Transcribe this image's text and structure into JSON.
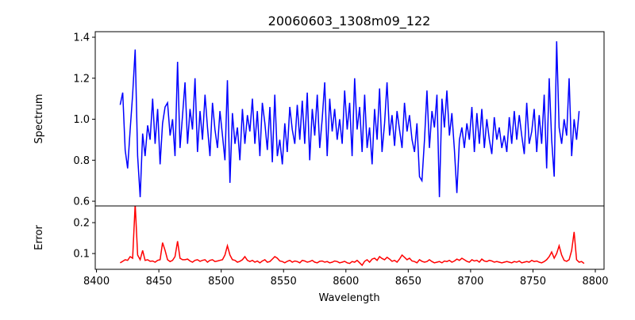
{
  "chart_data": [
    {
      "type": "line",
      "title": "20060603_1308m09_122",
      "ylabel": "Spectrum",
      "xlabel": "",
      "xlim": [
        8399,
        8807
      ],
      "ylim": [
        0.577,
        1.427
      ],
      "yticks": [
        0.6,
        0.8,
        1.0,
        1.2,
        1.4
      ],
      "ytick_labels": [
        "0.6",
        "0.8",
        "1.0",
        "1.2",
        "1.4"
      ],
      "color": "#0000ff",
      "x_start": 8419,
      "x_step": 2,
      "values": [
        1.07,
        1.13,
        0.85,
        0.76,
        0.95,
        1.12,
        1.34,
        0.82,
        0.62,
        0.93,
        0.82,
        0.97,
        0.9,
        1.1,
        0.88,
        1.05,
        0.78,
        0.98,
        1.06,
        1.08,
        0.92,
        1.0,
        0.82,
        1.28,
        0.86,
        1.02,
        1.18,
        0.88,
        1.05,
        0.95,
        1.2,
        0.84,
        1.04,
        0.9,
        1.12,
        0.96,
        0.82,
        1.08,
        0.95,
        0.86,
        1.04,
        0.92,
        0.8,
        1.19,
        0.69,
        1.03,
        0.88,
        0.96,
        0.8,
        1.05,
        0.88,
        1.02,
        0.94,
        1.1,
        0.88,
        1.04,
        0.82,
        1.08,
        0.98,
        0.85,
        1.06,
        0.79,
        1.12,
        0.82,
        0.9,
        0.78,
        0.98,
        0.84,
        1.06,
        0.95,
        0.88,
        1.07,
        0.9,
        1.09,
        0.88,
        1.13,
        0.8,
        1.05,
        0.92,
        1.12,
        0.86,
        1.0,
        1.18,
        0.82,
        1.1,
        0.94,
        1.05,
        0.9,
        1.0,
        0.88,
        1.14,
        0.95,
        1.08,
        0.82,
        1.2,
        0.95,
        1.06,
        0.84,
        1.12,
        0.86,
        0.96,
        0.78,
        1.05,
        0.9,
        1.15,
        0.84,
        0.98,
        1.18,
        0.92,
        1.02,
        0.87,
        1.04,
        0.95,
        0.86,
        1.08,
        0.94,
        1.02,
        0.9,
        0.84,
        0.98,
        0.72,
        0.7,
        0.9,
        1.14,
        0.86,
        1.04,
        0.96,
        1.12,
        0.62,
        1.1,
        0.96,
        1.14,
        0.92,
        1.03,
        0.85,
        0.64,
        0.9,
        0.96,
        0.86,
        0.98,
        0.9,
        1.06,
        0.84,
        1.03,
        0.88,
        1.05,
        0.86,
        1.0,
        0.9,
        0.83,
        1.01,
        0.9,
        0.96,
        0.86,
        0.92,
        0.84,
        1.01,
        0.88,
        1.04,
        0.9,
        1.02,
        0.92,
        0.83,
        1.08,
        0.88,
        0.94,
        1.05,
        0.84,
        1.02,
        0.88,
        1.12,
        0.76,
        1.2,
        0.9,
        0.72,
        1.38,
        0.96,
        0.88,
        1.0,
        0.92,
        1.2,
        0.82,
        1.0,
        0.9,
        1.04
      ]
    },
    {
      "type": "line",
      "title": "",
      "ylabel": "Error",
      "xlabel": "Wavelength",
      "xlim": [
        8399,
        8807
      ],
      "ylim": [
        0.049,
        0.254
      ],
      "yticks": [
        0.1,
        0.2
      ],
      "ytick_labels": [
        "0.1",
        "0.2"
      ],
      "xticks": [
        8400,
        8450,
        8500,
        8550,
        8600,
        8650,
        8700,
        8750,
        8800
      ],
      "xtick_labels": [
        "8400",
        "8450",
        "8500",
        "8550",
        "8600",
        "8650",
        "8700",
        "8750",
        "8800"
      ],
      "color": "#ff0000",
      "x_start": 8419,
      "x_step": 2,
      "values": [
        0.07,
        0.075,
        0.08,
        0.078,
        0.09,
        0.085,
        0.26,
        0.095,
        0.08,
        0.11,
        0.078,
        0.08,
        0.075,
        0.076,
        0.072,
        0.078,
        0.08,
        0.135,
        0.11,
        0.08,
        0.074,
        0.078,
        0.09,
        0.14,
        0.085,
        0.08,
        0.08,
        0.082,
        0.076,
        0.072,
        0.078,
        0.08,
        0.075,
        0.078,
        0.08,
        0.072,
        0.078,
        0.08,
        0.074,
        0.076,
        0.078,
        0.08,
        0.095,
        0.125,
        0.095,
        0.08,
        0.078,
        0.072,
        0.075,
        0.08,
        0.09,
        0.078,
        0.074,
        0.078,
        0.072,
        0.076,
        0.07,
        0.076,
        0.08,
        0.072,
        0.074,
        0.082,
        0.09,
        0.085,
        0.076,
        0.074,
        0.07,
        0.075,
        0.078,
        0.072,
        0.076,
        0.074,
        0.07,
        0.078,
        0.076,
        0.072,
        0.074,
        0.078,
        0.072,
        0.07,
        0.075,
        0.076,
        0.072,
        0.074,
        0.07,
        0.072,
        0.076,
        0.074,
        0.07,
        0.072,
        0.075,
        0.07,
        0.068,
        0.074,
        0.072,
        0.078,
        0.07,
        0.062,
        0.075,
        0.08,
        0.072,
        0.082,
        0.085,
        0.078,
        0.09,
        0.084,
        0.08,
        0.088,
        0.082,
        0.075,
        0.078,
        0.072,
        0.082,
        0.095,
        0.088,
        0.08,
        0.085,
        0.076,
        0.074,
        0.07,
        0.08,
        0.075,
        0.072,
        0.074,
        0.08,
        0.074,
        0.07,
        0.072,
        0.074,
        0.07,
        0.076,
        0.074,
        0.078,
        0.072,
        0.076,
        0.082,
        0.078,
        0.085,
        0.08,
        0.075,
        0.072,
        0.08,
        0.076,
        0.078,
        0.072,
        0.082,
        0.076,
        0.074,
        0.078,
        0.076,
        0.072,
        0.074,
        0.072,
        0.07,
        0.072,
        0.074,
        0.072,
        0.07,
        0.074,
        0.072,
        0.076,
        0.07,
        0.072,
        0.074,
        0.072,
        0.078,
        0.074,
        0.076,
        0.072,
        0.07,
        0.074,
        0.08,
        0.09,
        0.105,
        0.085,
        0.1,
        0.125,
        0.095,
        0.078,
        0.075,
        0.08,
        0.11,
        0.17,
        0.08,
        0.072,
        0.074,
        0.068
      ]
    }
  ]
}
